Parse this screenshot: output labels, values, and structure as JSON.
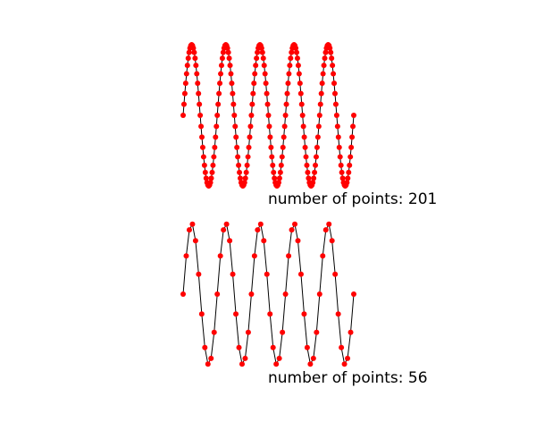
{
  "chart_data": [
    {
      "type": "line",
      "function": "sin",
      "x_range": [
        0,
        31.41592653589793
      ],
      "num_points": 201,
      "y_range": [
        -1,
        1
      ],
      "marker_color": "#ff0000",
      "line_color": "#000000",
      "caption": "number of points: 201"
    },
    {
      "type": "line",
      "function": "sin",
      "x_range": [
        0,
        31.41592653589793
      ],
      "num_points": 56,
      "y_range": [
        -1,
        1
      ],
      "marker_color": "#ff0000",
      "line_color": "#000000",
      "caption": "number of points: 56"
    }
  ]
}
